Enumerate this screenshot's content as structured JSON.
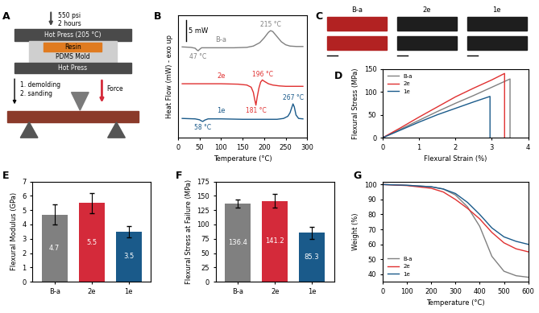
{
  "diagrams": {
    "press": {
      "panel_label": "A",
      "pressure": "550 psi",
      "time": "2 hours",
      "top_press": "Hot Press (205 °C)",
      "resin": "Resin",
      "mold": "PDMS Mold",
      "bottom_press": "Hot Press",
      "steps": [
        "1. demolding",
        "2. sanding"
      ],
      "force": "Force"
    },
    "photos": {
      "panel_label": "C",
      "samples": [
        "B-a",
        "2e",
        "1e"
      ],
      "colors": [
        "#b22222",
        "#1e1e1e",
        "#1e1e1e"
      ]
    }
  },
  "chart_data": [
    {
      "panel_label": "B",
      "type": "line",
      "x_label": "Temperature (°C)",
      "y_label": "Heat Flow (mW) - exo up",
      "xlim": [
        0,
        300
      ],
      "xticks": [
        0,
        50,
        100,
        150,
        200,
        250,
        300
      ],
      "ylim": [
        4,
        32.5
      ],
      "yticks": [],
      "tick_labels": "x",
      "scale_bar": {
        "value": 5,
        "label": "5 mW"
      },
      "series": [
        {
          "name": "B-a",
          "color": "#808080",
          "x": [
            10,
            30,
            40,
            44,
            47,
            50,
            55,
            70,
            100,
            130,
            160,
            175,
            190,
            200,
            210,
            215,
            220,
            230,
            240,
            250,
            260,
            275,
            290
          ],
          "values": [
            25.2,
            25.1,
            24.9,
            24.5,
            24.3,
            24.6,
            25.0,
            25.0,
            25.0,
            25.0,
            25.1,
            25.4,
            26.2,
            27.3,
            28.6,
            29.0,
            28.8,
            27.6,
            26.4,
            25.7,
            25.4,
            25.3,
            25.3
          ],
          "annotations": [
            {
              "text": "47 °C",
              "x": 47
            },
            {
              "text": "215 °C",
              "x": 215
            }
          ]
        },
        {
          "name": "2e",
          "color": "#e03030",
          "x": [
            10,
            50,
            100,
            140,
            160,
            170,
            175,
            178,
            181,
            184,
            188,
            192,
            196,
            200,
            210,
            220,
            235,
            250,
            270,
            290
          ],
          "values": [
            16.6,
            16.6,
            16.6,
            16.5,
            16.3,
            15.8,
            14.6,
            13.0,
            11.6,
            13.5,
            15.6,
            17.0,
            17.5,
            17.2,
            16.6,
            16.3,
            16.1,
            16.0,
            16.0,
            16.0
          ],
          "annotations": [
            {
              "text": "181 °C",
              "x": 181
            },
            {
              "text": "196 °C",
              "x": 196
            }
          ]
        },
        {
          "name": "1e",
          "color": "#1a5a8a",
          "x": [
            10,
            40,
            50,
            55,
            58,
            62,
            70,
            100,
            150,
            200,
            230,
            245,
            255,
            260,
            264,
            267,
            270,
            274,
            280,
            290
          ],
          "values": [
            8.5,
            8.4,
            8.2,
            7.9,
            7.8,
            8.1,
            8.4,
            8.4,
            8.3,
            8.3,
            8.3,
            8.5,
            9.0,
            9.8,
            11.0,
            11.9,
            11.2,
            9.3,
            8.5,
            8.4
          ],
          "annotations": [
            {
              "text": "58 °C",
              "x": 58
            },
            {
              "text": "267 °C",
              "x": 267
            }
          ]
        }
      ]
    },
    {
      "panel_label": "D",
      "type": "line",
      "x_label": "Flexural Strain (%)",
      "y_label": "Flexural Stress (MPa)",
      "xlim": [
        0,
        4
      ],
      "xticks": [
        0,
        1,
        2,
        3,
        4
      ],
      "ylim": [
        0,
        150
      ],
      "yticks": [
        0,
        50,
        100,
        150
      ],
      "legend": "upper left",
      "series": [
        {
          "name": "B-a",
          "color": "#808080",
          "x": [
            0,
            0.5,
            1,
            1.5,
            2,
            2.5,
            3,
            3.5,
            3.5
          ],
          "values": [
            0,
            19,
            38,
            57,
            75,
            92,
            110,
            128,
            0
          ]
        },
        {
          "name": "2e",
          "color": "#e03030",
          "x": [
            0,
            0.5,
            1,
            1.5,
            2,
            2.5,
            3,
            3.35,
            3.35
          ],
          "values": [
            0,
            22,
            45,
            67,
            89,
            108,
            126,
            140,
            0
          ]
        },
        {
          "name": "1e",
          "color": "#1a5a8a",
          "x": [
            0,
            0.5,
            1,
            1.5,
            2,
            2.5,
            2.95,
            2.95
          ],
          "values": [
            0,
            17,
            34,
            50,
            64,
            78,
            90,
            0
          ]
        }
      ]
    },
    {
      "panel_label": "E",
      "type": "bar",
      "y_label": "Flexural Modulus (GPa)",
      "categories": [
        "B-a",
        "2e",
        "1e"
      ],
      "values": [
        4.7,
        5.5,
        3.5
      ],
      "errors": [
        0.7,
        0.7,
        0.4
      ],
      "colors": [
        "#808080",
        "#d42a3a",
        "#1a5a8a"
      ],
      "ylim": [
        0,
        7
      ],
      "yticks": [
        0,
        1,
        2,
        3,
        4,
        5,
        6,
        7
      ],
      "data_labels": true
    },
    {
      "panel_label": "F",
      "type": "bar",
      "y_label": "Flexural Stress at Failure (MPa)",
      "categories": [
        "B-a",
        "2e",
        "1e"
      ],
      "values": [
        136.4,
        141.2,
        85.3
      ],
      "errors": [
        7,
        12,
        11
      ],
      "colors": [
        "#808080",
        "#d42a3a",
        "#1a5a8a"
      ],
      "ylim": [
        0,
        175
      ],
      "yticks": [
        0,
        25,
        50,
        75,
        100,
        125,
        150,
        175
      ],
      "data_labels": true
    },
    {
      "panel_label": "G",
      "type": "line",
      "x_label": "Temperature (°C)",
      "y_label": "Weight (%)",
      "xlim": [
        0,
        600
      ],
      "xticks": [
        0,
        100,
        200,
        300,
        400,
        500,
        600
      ],
      "ylim": [
        35,
        102
      ],
      "yticks": [
        40,
        50,
        60,
        70,
        80,
        90,
        100
      ],
      "legend": "lower left",
      "series": [
        {
          "name": "B-a",
          "color": "#808080",
          "x": [
            0,
            100,
            200,
            250,
            300,
            350,
            400,
            450,
            500,
            550,
            600
          ],
          "values": [
            100,
            99.5,
            98.5,
            97,
            93,
            85,
            72,
            52,
            42,
            39,
            38
          ]
        },
        {
          "name": "2e",
          "color": "#e03030",
          "x": [
            0,
            100,
            200,
            250,
            300,
            350,
            400,
            450,
            500,
            550,
            600
          ],
          "values": [
            100,
            99.3,
            97.5,
            95,
            90,
            84,
            77,
            68,
            61,
            57,
            55
          ]
        },
        {
          "name": "1e",
          "color": "#1a5a8a",
          "x": [
            0,
            100,
            200,
            250,
            300,
            350,
            400,
            450,
            500,
            550,
            600
          ],
          "values": [
            100,
            99.5,
            98.5,
            97,
            94,
            88,
            80,
            71,
            65,
            62,
            60
          ]
        }
      ]
    }
  ]
}
